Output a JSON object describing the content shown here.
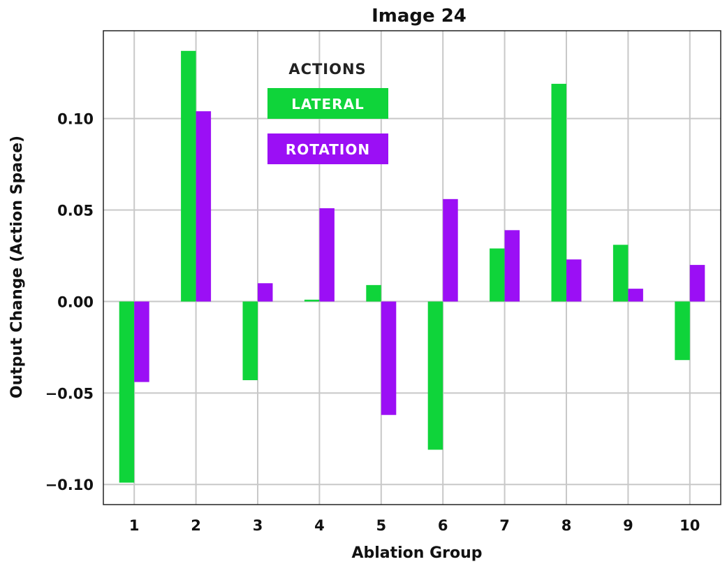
{
  "chart_data": {
    "type": "bar",
    "title": "Image 24",
    "xlabel": "Ablation Group",
    "ylabel": "Output Change (Action Space)",
    "categories": [
      "1",
      "2",
      "3",
      "4",
      "5",
      "6",
      "7",
      "8",
      "9",
      "10"
    ],
    "ylim": [
      -0.111,
      0.148
    ],
    "yticks": [
      -0.1,
      -0.05,
      0.0,
      0.05,
      0.1
    ],
    "ytick_labels": [
      "−0.10",
      "−0.05",
      "0.00",
      "0.05",
      "0.10"
    ],
    "grid": true,
    "legend_title": "ACTIONS",
    "legend_position": "top-center",
    "series": [
      {
        "name": "LATERAL",
        "color": "#0fd43a",
        "values": [
          -0.099,
          0.137,
          -0.043,
          0.001,
          0.009,
          -0.081,
          0.029,
          0.119,
          0.031,
          -0.032
        ]
      },
      {
        "name": "ROTATION",
        "color": "#9b0ff5",
        "values": [
          -0.044,
          0.104,
          0.01,
          0.051,
          -0.062,
          0.056,
          0.039,
          0.023,
          0.007,
          0.02
        ]
      }
    ]
  }
}
